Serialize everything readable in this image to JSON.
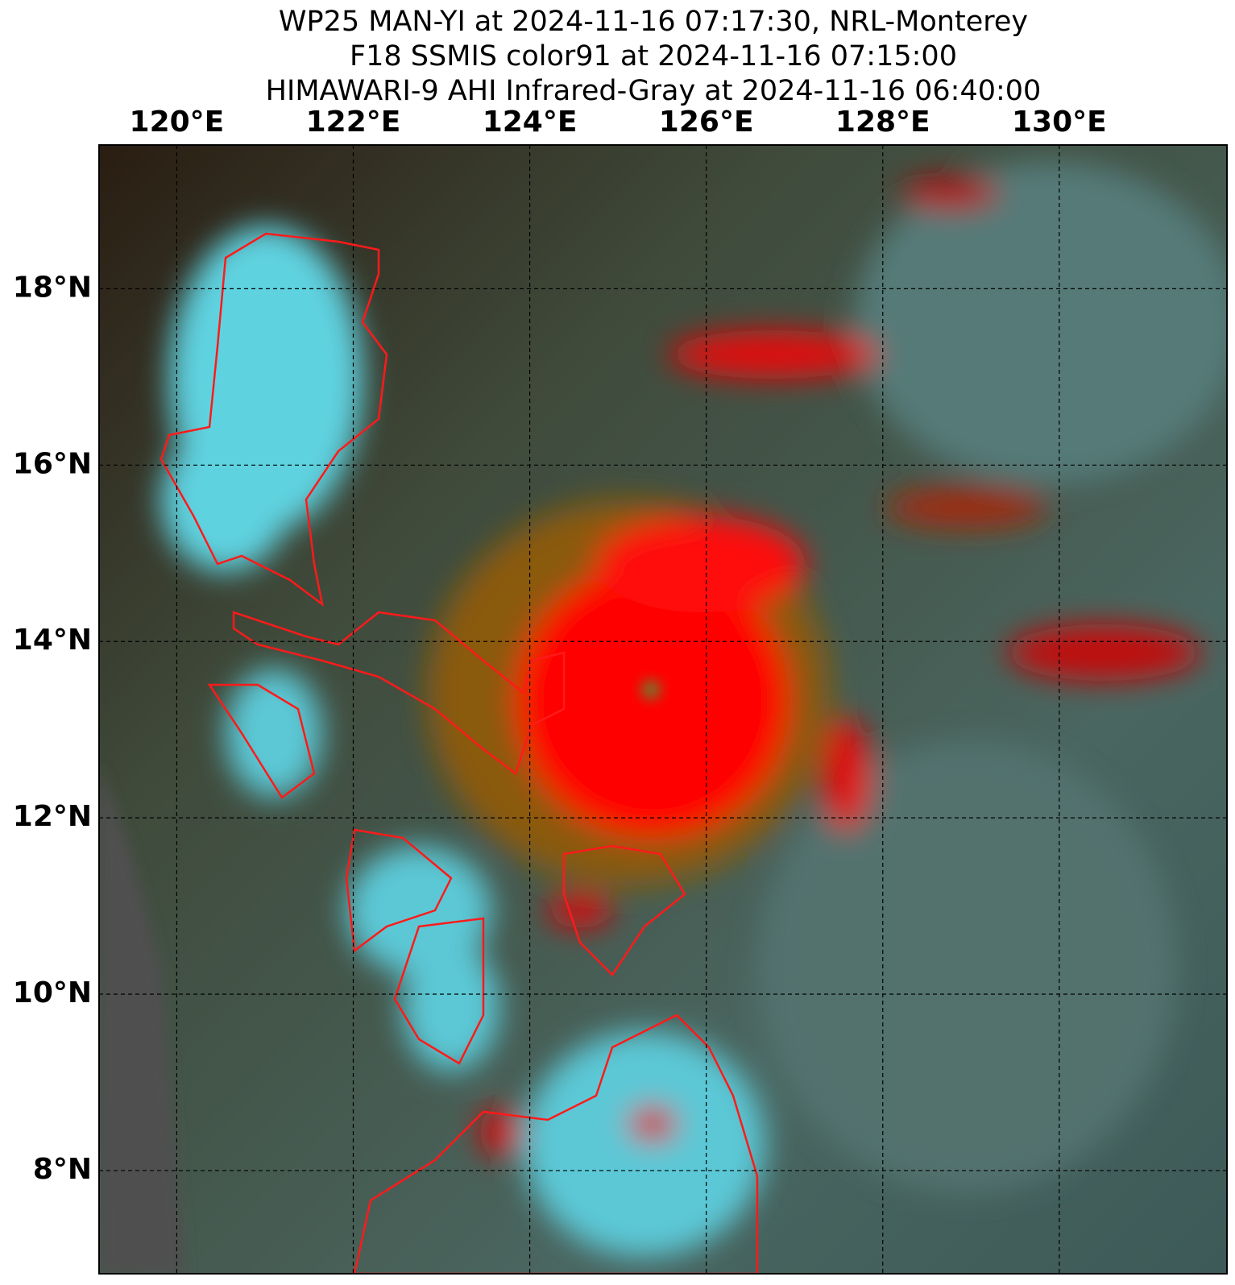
{
  "map": {
    "title": [
      "WP25 MAN-YI at 2024-11-16 07:17:30, NRL-Monterey",
      "F18 SSMIS color91 at 2024-11-16 07:15:00",
      "HIMAWARI-9 AHI Infrared-Gray at 2024-11-16 06:40:00"
    ],
    "xlim": [
      119.12,
      131.9
    ],
    "ylim": [
      6.83,
      19.63
    ],
    "xticks": [
      {
        "value": 120,
        "label": "120°E"
      },
      {
        "value": 122,
        "label": "122°E"
      },
      {
        "value": 124,
        "label": "124°E"
      },
      {
        "value": 126,
        "label": "126°E"
      },
      {
        "value": 128,
        "label": "128°E"
      },
      {
        "value": 130,
        "label": "130°E"
      }
    ],
    "yticks": [
      {
        "value": 8,
        "label": "8°N"
      },
      {
        "value": 10,
        "label": "10°N"
      },
      {
        "value": 12,
        "label": "12°N"
      },
      {
        "value": 14,
        "label": "14°N"
      },
      {
        "value": 16,
        "label": "16°N"
      },
      {
        "value": 18,
        "label": "18°N"
      }
    ],
    "grid": true
  }
}
